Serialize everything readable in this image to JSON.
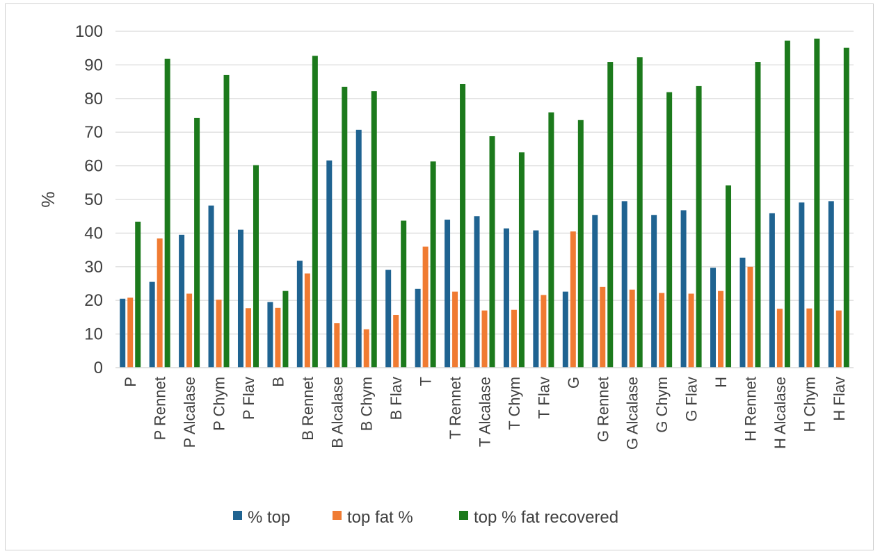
{
  "chart_data": {
    "type": "bar",
    "title": "",
    "xlabel": "",
    "ylabel": "%",
    "ylim": [
      0,
      100
    ],
    "yticks": [
      0,
      10,
      20,
      30,
      40,
      50,
      60,
      70,
      80,
      90,
      100
    ],
    "grid": true,
    "legend_position": "bottom",
    "categories": [
      "P",
      "P Rennet",
      "P Alcalase",
      "P Chym",
      "P Flav",
      "B",
      "B Rennet",
      "B Alcalase",
      "B Chym",
      "B Flav",
      "T",
      "T Rennet",
      "T Alcalase",
      "T Chym",
      "T Flav",
      "G",
      "G Rennet",
      "G Alcalase",
      "G Chym",
      "G Flav",
      "H",
      "H Rennet",
      "H Alcalase",
      "H Chym",
      "H Flav"
    ],
    "series": [
      {
        "name": "% top",
        "color": "#1f6391",
        "values": [
          20.5,
          25.5,
          39.5,
          48.2,
          41.0,
          19.5,
          31.8,
          61.6,
          70.7,
          29.1,
          23.4,
          44.0,
          45.0,
          41.4,
          40.8,
          22.6,
          45.4,
          49.5,
          45.4,
          46.8,
          29.7,
          32.7,
          45.9,
          49.1,
          49.5
        ]
      },
      {
        "name": "top fat %",
        "color": "#f07b32",
        "values": [
          20.8,
          38.4,
          22.0,
          20.2,
          17.7,
          17.8,
          28.0,
          13.2,
          11.4,
          15.7,
          36.0,
          22.6,
          17.0,
          17.2,
          21.6,
          40.5,
          24.0,
          23.2,
          22.2,
          22.0,
          22.8,
          30.0,
          17.5,
          17.6,
          17.0
        ]
      },
      {
        "name": "top % fat recovered",
        "color": "#1c7a1c",
        "values": [
          43.4,
          91.8,
          74.2,
          87.0,
          60.2,
          22.8,
          92.7,
          83.5,
          82.2,
          43.7,
          61.3,
          84.3,
          68.8,
          64.0,
          75.9,
          73.6,
          90.9,
          92.3,
          81.9,
          83.7,
          54.2,
          90.9,
          97.2,
          97.8,
          95.1
        ]
      }
    ]
  }
}
